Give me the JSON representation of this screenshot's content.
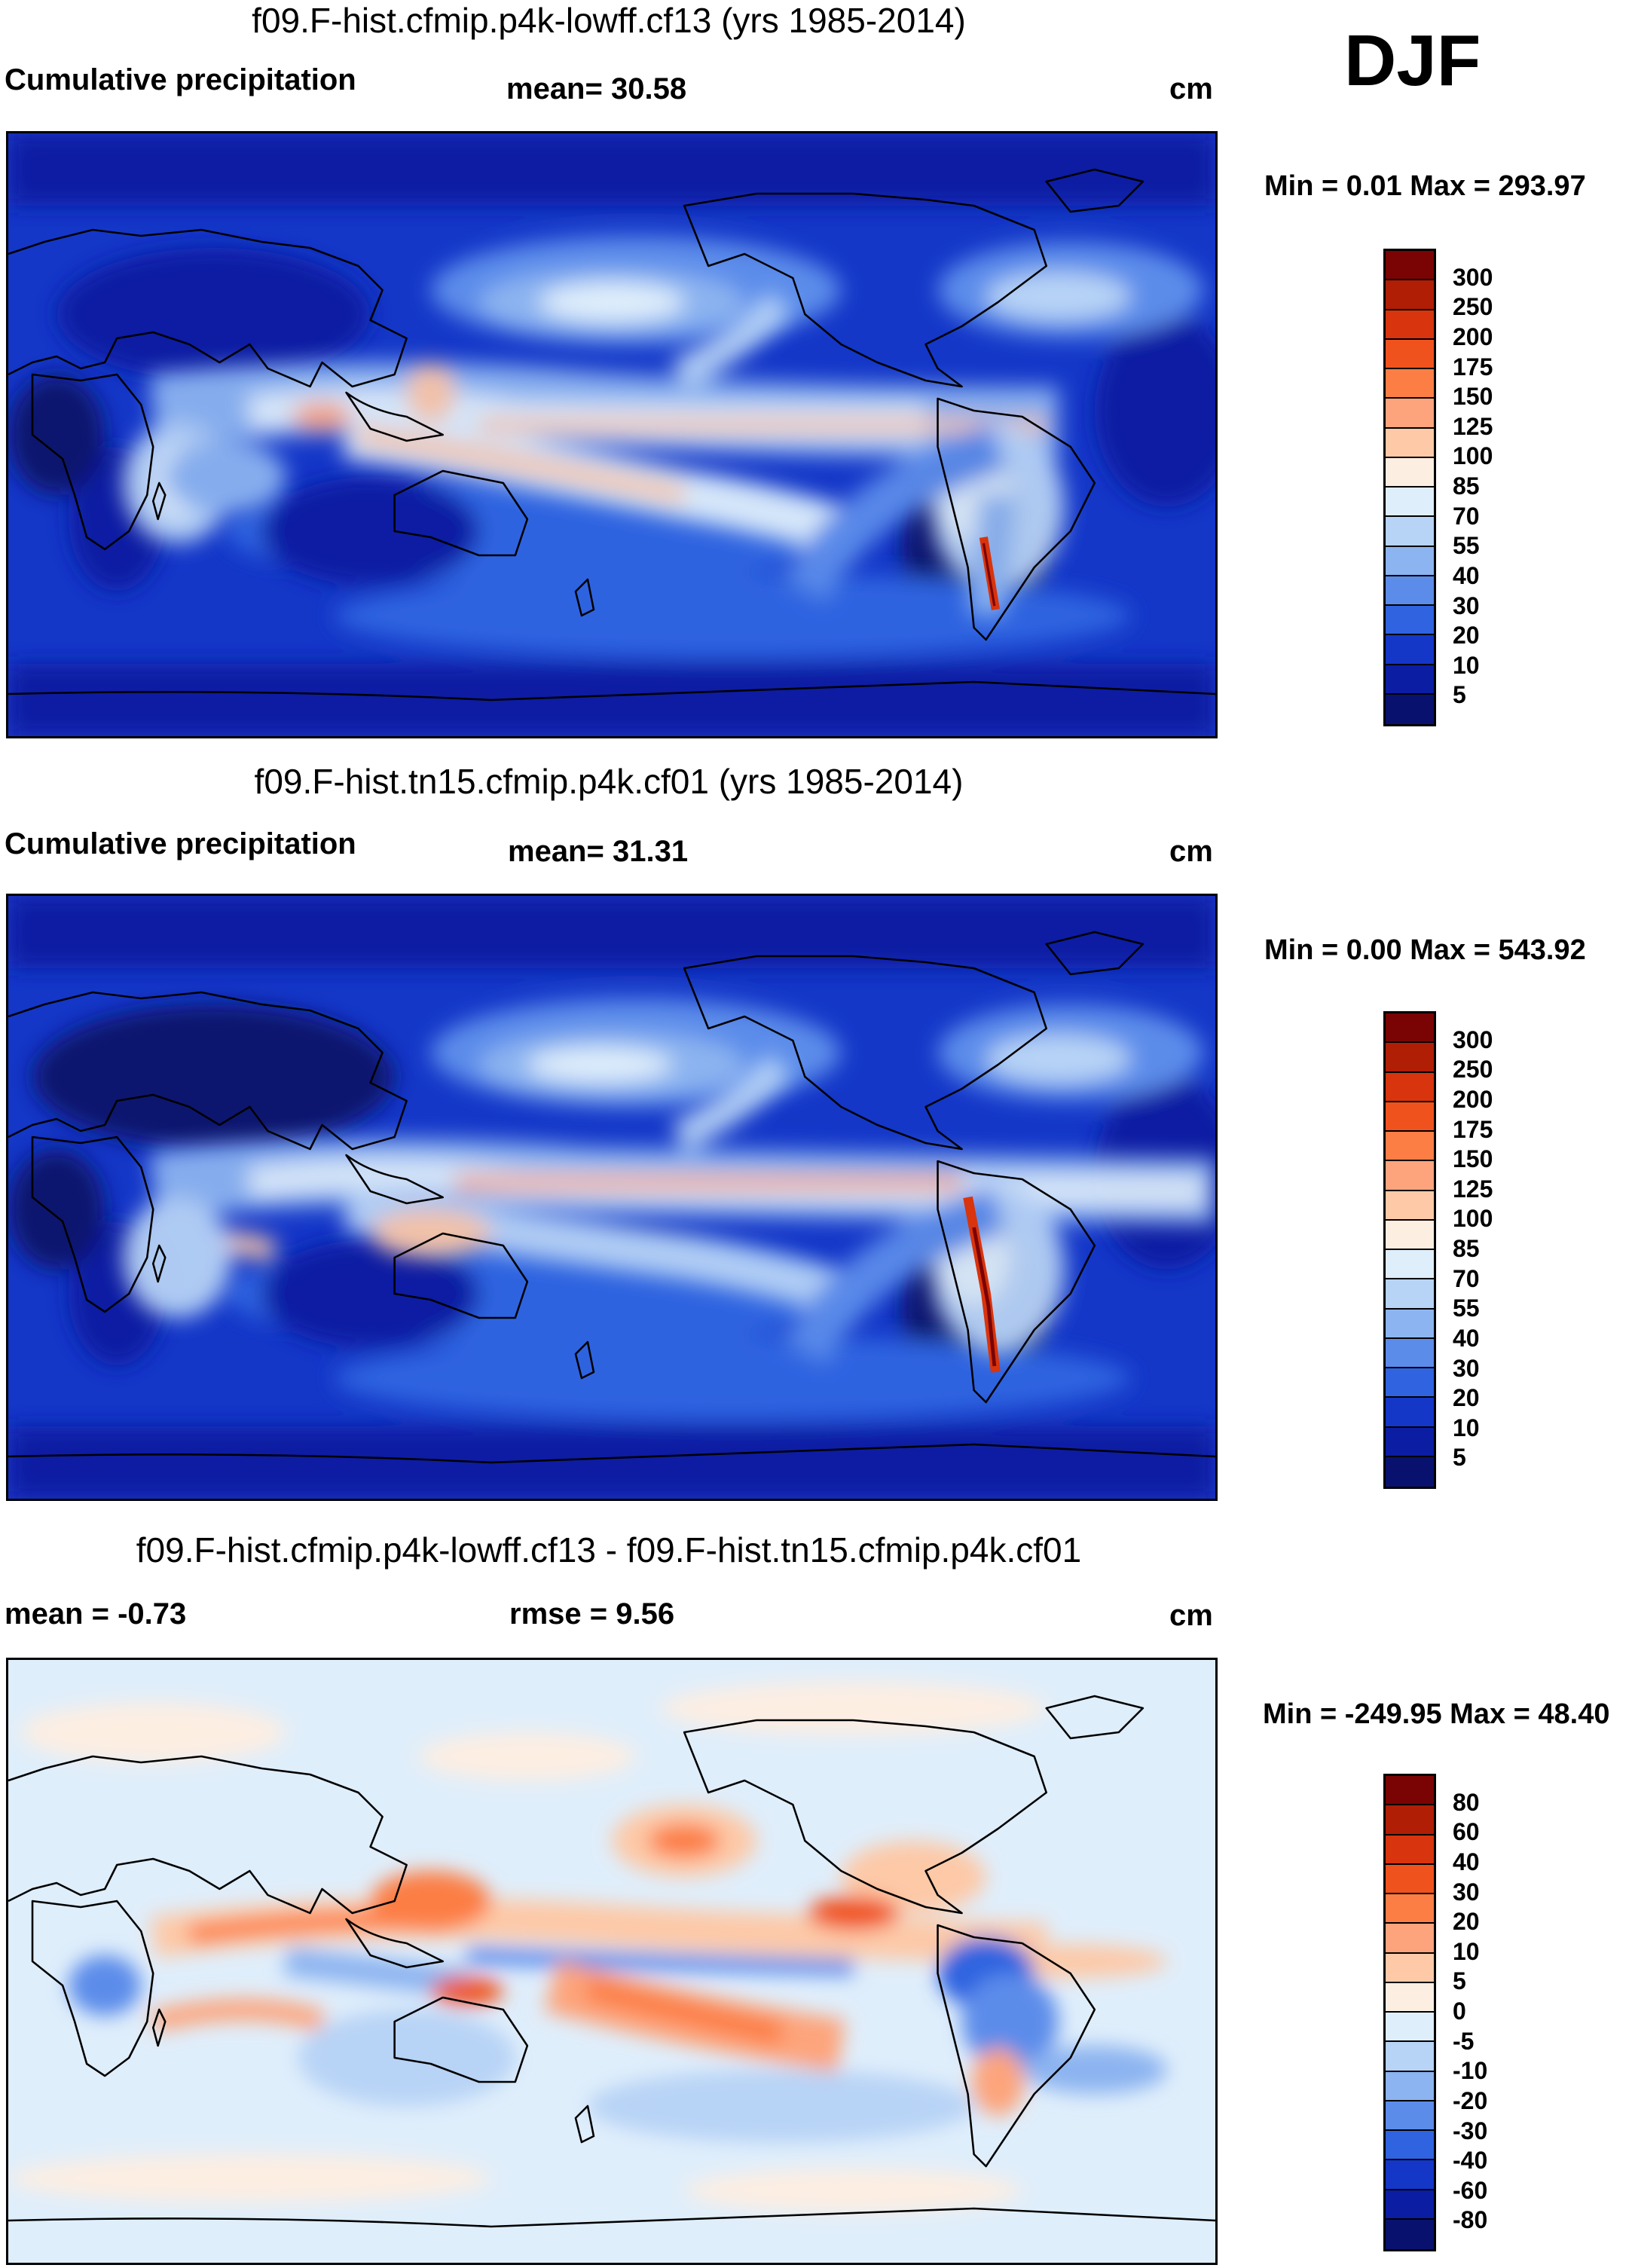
{
  "season": "DJF",
  "panels": [
    {
      "id": "p1",
      "title": "f09.F-hist.cfmip.p4k-lowff.cf13 (yrs 1985-2014)",
      "left_label": "Cumulative precipitation",
      "stat_label": "mean=  30.58",
      "units": "cm",
      "minmax": "Min =   0.01 Max = 293.97",
      "colorbar": {
        "levels": [
          "300",
          "250",
          "200",
          "175",
          "150",
          "125",
          "100",
          "85",
          "70",
          "55",
          "40",
          "30",
          "20",
          "10",
          "5"
        ],
        "colors": [
          "#7a0403",
          "#b01e05",
          "#d8340d",
          "#f0521d",
          "#fc7e45",
          "#fda47c",
          "#fdc9a7",
          "#fdeee2",
          "#dfeefb",
          "#b7d3f6",
          "#8cb4f0",
          "#5c8cea",
          "#2f63e0",
          "#1437c8",
          "#0a1da3",
          "#08126e"
        ]
      }
    },
    {
      "id": "p2",
      "title": "f09.F-hist.tn15.cfmip.p4k.cf01 (yrs 1985-2014)",
      "left_label": "Cumulative precipitation",
      "stat_label": "mean=  31.31",
      "units": "cm",
      "minmax": "Min =   0.00 Max = 543.92",
      "colorbar": {
        "levels": [
          "300",
          "250",
          "200",
          "175",
          "150",
          "125",
          "100",
          "85",
          "70",
          "55",
          "40",
          "30",
          "20",
          "10",
          "5"
        ],
        "colors": [
          "#7a0403",
          "#b01e05",
          "#d8340d",
          "#f0521d",
          "#fc7e45",
          "#fda47c",
          "#fdc9a7",
          "#fdeee2",
          "#dfeefb",
          "#b7d3f6",
          "#8cb4f0",
          "#5c8cea",
          "#2f63e0",
          "#1437c8",
          "#0a1da3",
          "#08126e"
        ]
      }
    },
    {
      "id": "p3",
      "title": "f09.F-hist.cfmip.p4k-lowff.cf13 - f09.F-hist.tn15.cfmip.p4k.cf01",
      "left_label": "mean =  -0.73",
      "stat_label": "rmse =   9.56",
      "units": "cm",
      "minmax": "Min = -249.95 Max =  48.40",
      "colorbar": {
        "levels": [
          "80",
          "60",
          "40",
          "30",
          "20",
          "10",
          "5",
          "0",
          "-5",
          "-10",
          "-20",
          "-30",
          "-40",
          "-60",
          "-80"
        ],
        "colors": [
          "#7a0403",
          "#b01e05",
          "#d8340d",
          "#f0521d",
          "#fc7e45",
          "#fda47c",
          "#fdc9a7",
          "#fdeee2",
          "#dfeefb",
          "#b7d3f6",
          "#8cb4f0",
          "#5c8cea",
          "#2f63e0",
          "#1437c8",
          "#0a1da3",
          "#08126e"
        ]
      }
    }
  ],
  "chart_data": [
    {
      "type": "heatmap",
      "title": "f09.F-hist.cfmip.p4k-lowff.cf13 (yrs 1985-2014)",
      "variable": "Cumulative precipitation",
      "season": "DJF",
      "units": "cm",
      "mean": 30.58,
      "min": 0.01,
      "max": 293.97,
      "contour_levels": [
        5,
        10,
        20,
        30,
        40,
        55,
        70,
        85,
        100,
        125,
        150,
        175,
        200,
        250,
        300
      ]
    },
    {
      "type": "heatmap",
      "title": "f09.F-hist.tn15.cfmip.p4k.cf01 (yrs 1985-2014)",
      "variable": "Cumulative precipitation",
      "season": "DJF",
      "units": "cm",
      "mean": 31.31,
      "min": 0.0,
      "max": 543.92,
      "contour_levels": [
        5,
        10,
        20,
        30,
        40,
        55,
        70,
        85,
        100,
        125,
        150,
        175,
        200,
        250,
        300
      ]
    },
    {
      "type": "heatmap",
      "title": "f09.F-hist.cfmip.p4k-lowff.cf13 - f09.F-hist.tn15.cfmip.p4k.cf01",
      "season": "DJF",
      "units": "cm",
      "mean": -0.73,
      "rmse": 9.56,
      "min": -249.95,
      "max": 48.4,
      "contour_levels": [
        -80,
        -60,
        -40,
        -30,
        -20,
        -10,
        -5,
        0,
        5,
        10,
        20,
        30,
        40,
        60,
        80
      ]
    }
  ]
}
